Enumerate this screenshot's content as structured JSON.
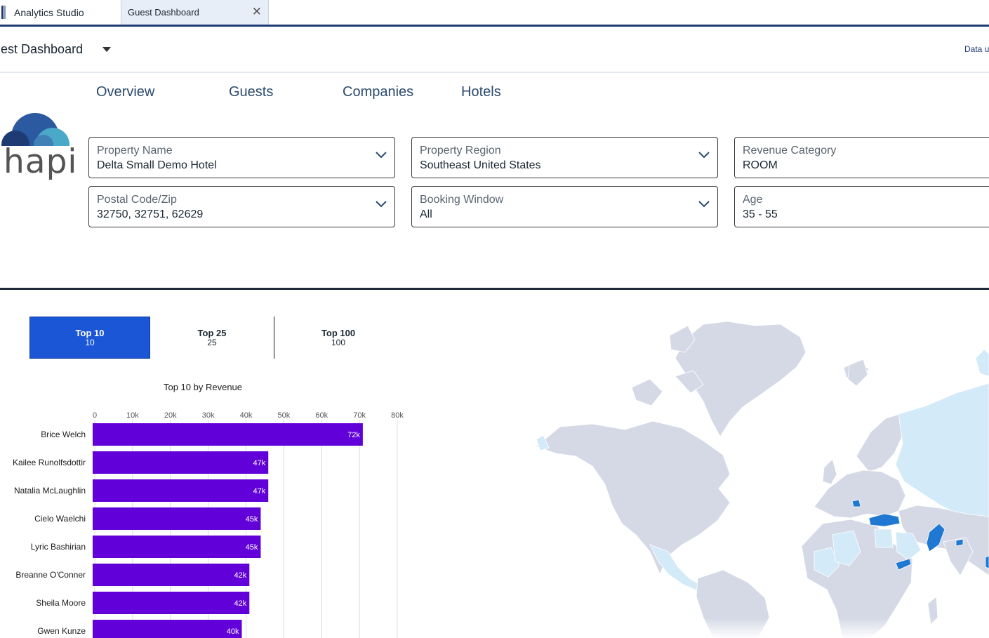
{
  "app": {
    "name": "Analytics Studio",
    "icon": "app-bars-icon"
  },
  "tabs": [
    {
      "label": "Guest Dashboard",
      "active": true
    }
  ],
  "header": {
    "title": "uest Dashboard",
    "data_link": "Data u"
  },
  "nav": {
    "items": [
      {
        "label": "Overview"
      },
      {
        "label": "Guests"
      },
      {
        "label": "Companies"
      },
      {
        "label": "Hotels"
      }
    ]
  },
  "logo": {
    "text": "hapi",
    "colors": [
      "#1f3b73",
      "#2c5aa0",
      "#4aa8c8"
    ]
  },
  "filters": [
    {
      "label": "Property Name",
      "value": "Delta Small Demo Hotel"
    },
    {
      "label": "Property Region",
      "value": "Southeast United States"
    },
    {
      "label": "Revenue Category",
      "value": "ROOM"
    },
    {
      "label": "Postal Code/Zip",
      "value": "32750, 32751, 62629"
    },
    {
      "label": "Booking Window",
      "value": "All"
    },
    {
      "label": "Age",
      "value": "35 - 55"
    }
  ],
  "topn": [
    {
      "label": "Top 10",
      "sub": "10",
      "active": true
    },
    {
      "label": "Top 25",
      "sub": "25",
      "active": false
    },
    {
      "label": "Top 100",
      "sub": "100",
      "active": false
    }
  ],
  "colors": {
    "accent": "#1a56d6",
    "bar": "#6200d9",
    "nav": "#2b4a6e",
    "map_land": "#d5d9e6",
    "map_light": "#d3eaf8",
    "map_highlight": "#1f78d1"
  },
  "chart_data": {
    "type": "bar",
    "orientation": "horizontal",
    "title": "Top 10 by Revenue",
    "categories": [
      "Brice Welch",
      "Kailee Runolfsdottir",
      "Natalia McLaughlin",
      "Cielo Waelchi",
      "Lyric Bashirian",
      "Breanne O'Conner",
      "Sheila Moore",
      "Gwen Kunze"
    ],
    "values": [
      72000,
      47000,
      47000,
      45000,
      45000,
      42000,
      42000,
      40000
    ],
    "data_labels": [
      "72k",
      "47k",
      "47k",
      "45k",
      "45k",
      "42k",
      "42k",
      "40k"
    ],
    "ticks": [
      "0",
      "10k",
      "20k",
      "30k",
      "40k",
      "50k",
      "60k",
      "70k",
      "80k"
    ],
    "xlim": [
      0,
      80000
    ],
    "grid": true,
    "legend": "none"
  },
  "map": {
    "type": "choropleth",
    "highlighted_regions": [
      "Turkey",
      "Pakistan",
      "Yemen",
      "Serbia",
      "Bangladesh"
    ],
    "light_regions": [
      "Russia",
      "Mexico",
      "Mali",
      "Algeria",
      "Egypt",
      "Saudi Arabia"
    ]
  }
}
